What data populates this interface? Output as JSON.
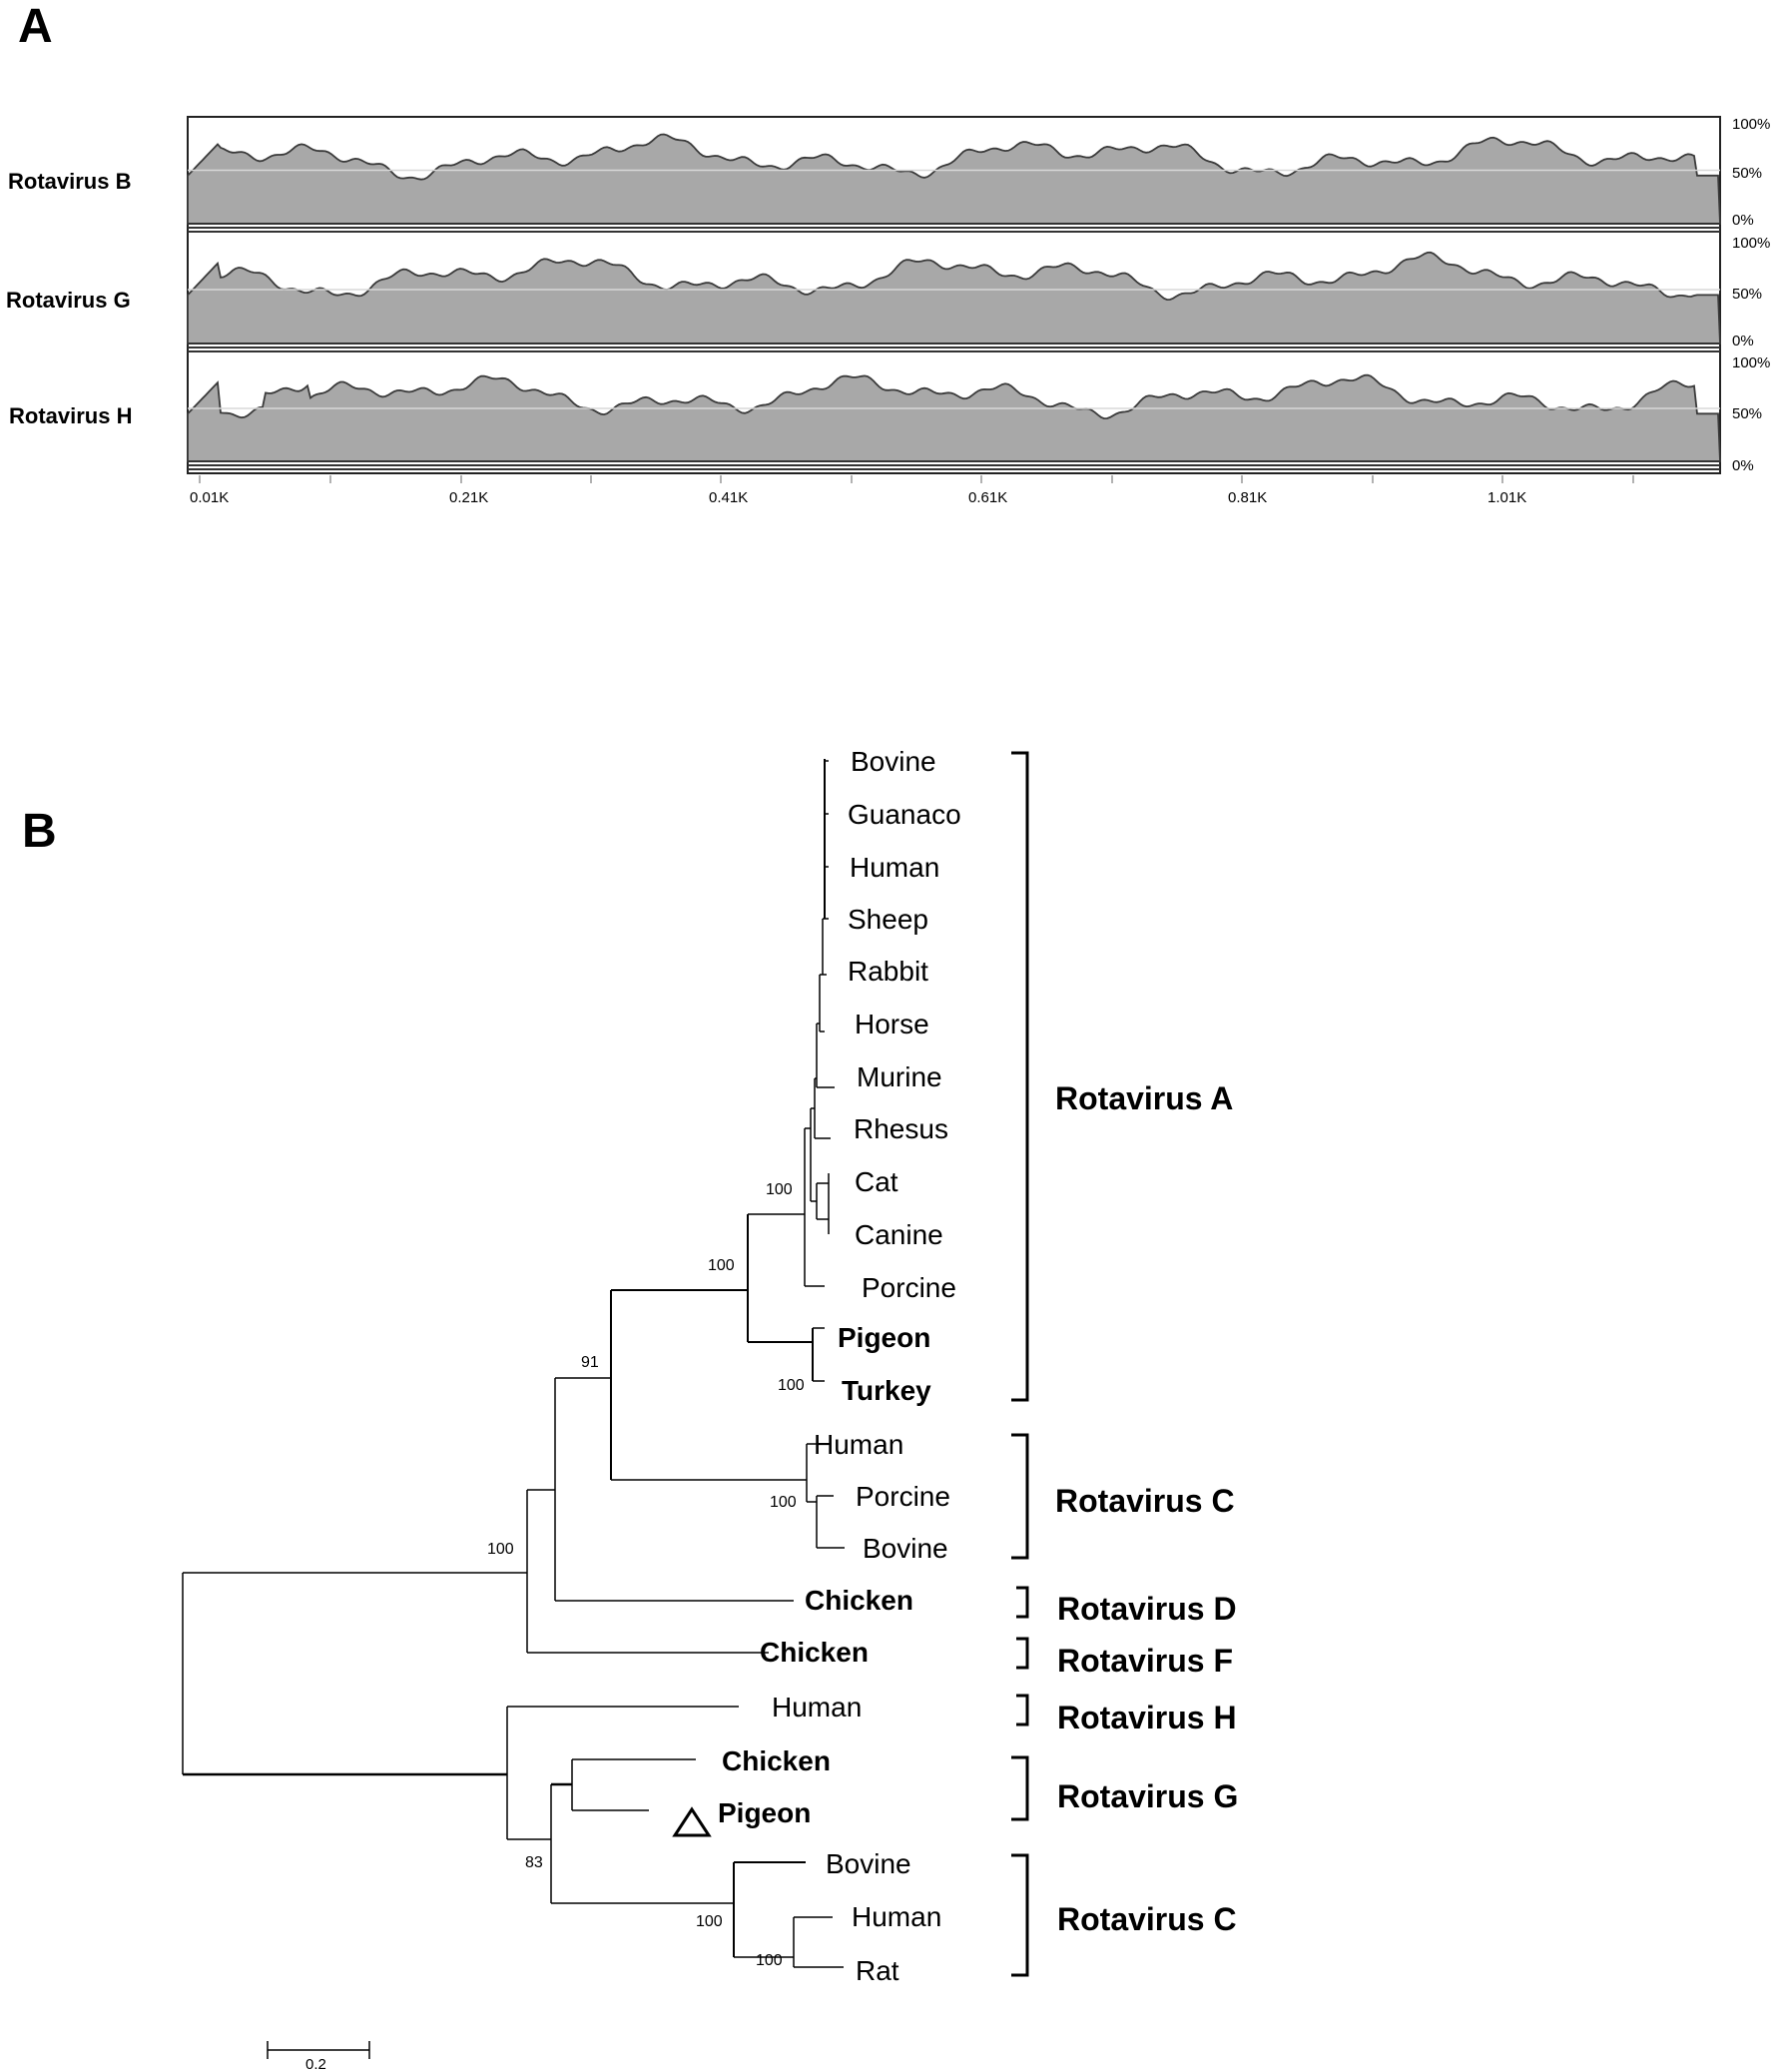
{
  "panel_a": {
    "label": "A",
    "tracks": [
      {
        "name": "Rotavirus B",
        "pct_top": "100%",
        "pct_mid": "50%",
        "pct_bot": "0%"
      },
      {
        "name": "Rotavirus G",
        "pct_top": "100%",
        "pct_mid": "50%",
        "pct_bot": "0%"
      },
      {
        "name": "Rotavirus H",
        "pct_top": "100%",
        "pct_mid": "50%",
        "pct_bot": "0%"
      }
    ],
    "x_ticks": [
      "0.01K",
      "0.21K",
      "0.41K",
      "0.61K",
      "0.81K",
      "1.01K"
    ],
    "fill_color": "#a8a8a8",
    "line_color": "#3a3a3a"
  },
  "panel_b": {
    "label": "B",
    "taxa": [
      {
        "name": "Bovine",
        "bold": false
      },
      {
        "name": "Guanaco",
        "bold": false
      },
      {
        "name": "Human",
        "bold": false
      },
      {
        "name": "Sheep",
        "bold": false
      },
      {
        "name": "Rabbit",
        "bold": false
      },
      {
        "name": "Horse",
        "bold": false
      },
      {
        "name": "Murine",
        "bold": false
      },
      {
        "name": "Rhesus",
        "bold": false
      },
      {
        "name": "Cat",
        "bold": false
      },
      {
        "name": "Canine",
        "bold": false
      },
      {
        "name": "Porcine",
        "bold": false
      },
      {
        "name": "Pigeon",
        "bold": true
      },
      {
        "name": "Turkey",
        "bold": true
      },
      {
        "name": "Human",
        "bold": false
      },
      {
        "name": "Porcine",
        "bold": false
      },
      {
        "name": "Bovine",
        "bold": false
      },
      {
        "name": "Chicken",
        "bold": true
      },
      {
        "name": "Chicken",
        "bold": true
      },
      {
        "name": "Human",
        "bold": false
      },
      {
        "name": "Chicken",
        "bold": true
      },
      {
        "name": "Pigeon",
        "bold": true,
        "marker": "triangle"
      },
      {
        "name": "Bovine",
        "bold": false
      },
      {
        "name": "Human",
        "bold": false
      },
      {
        "name": "Rat",
        "bold": false
      }
    ],
    "bootstrap": [
      "100",
      "100",
      "91",
      "100",
      "100",
      "100",
      "83",
      "100",
      "100"
    ],
    "groups": [
      "Rotavirus A",
      "Rotavirus C",
      "Rotavirus D",
      "Rotavirus F",
      "Rotavirus H",
      "Rotavirus G",
      "Rotavirus C"
    ],
    "scale_bar": "0.2"
  }
}
